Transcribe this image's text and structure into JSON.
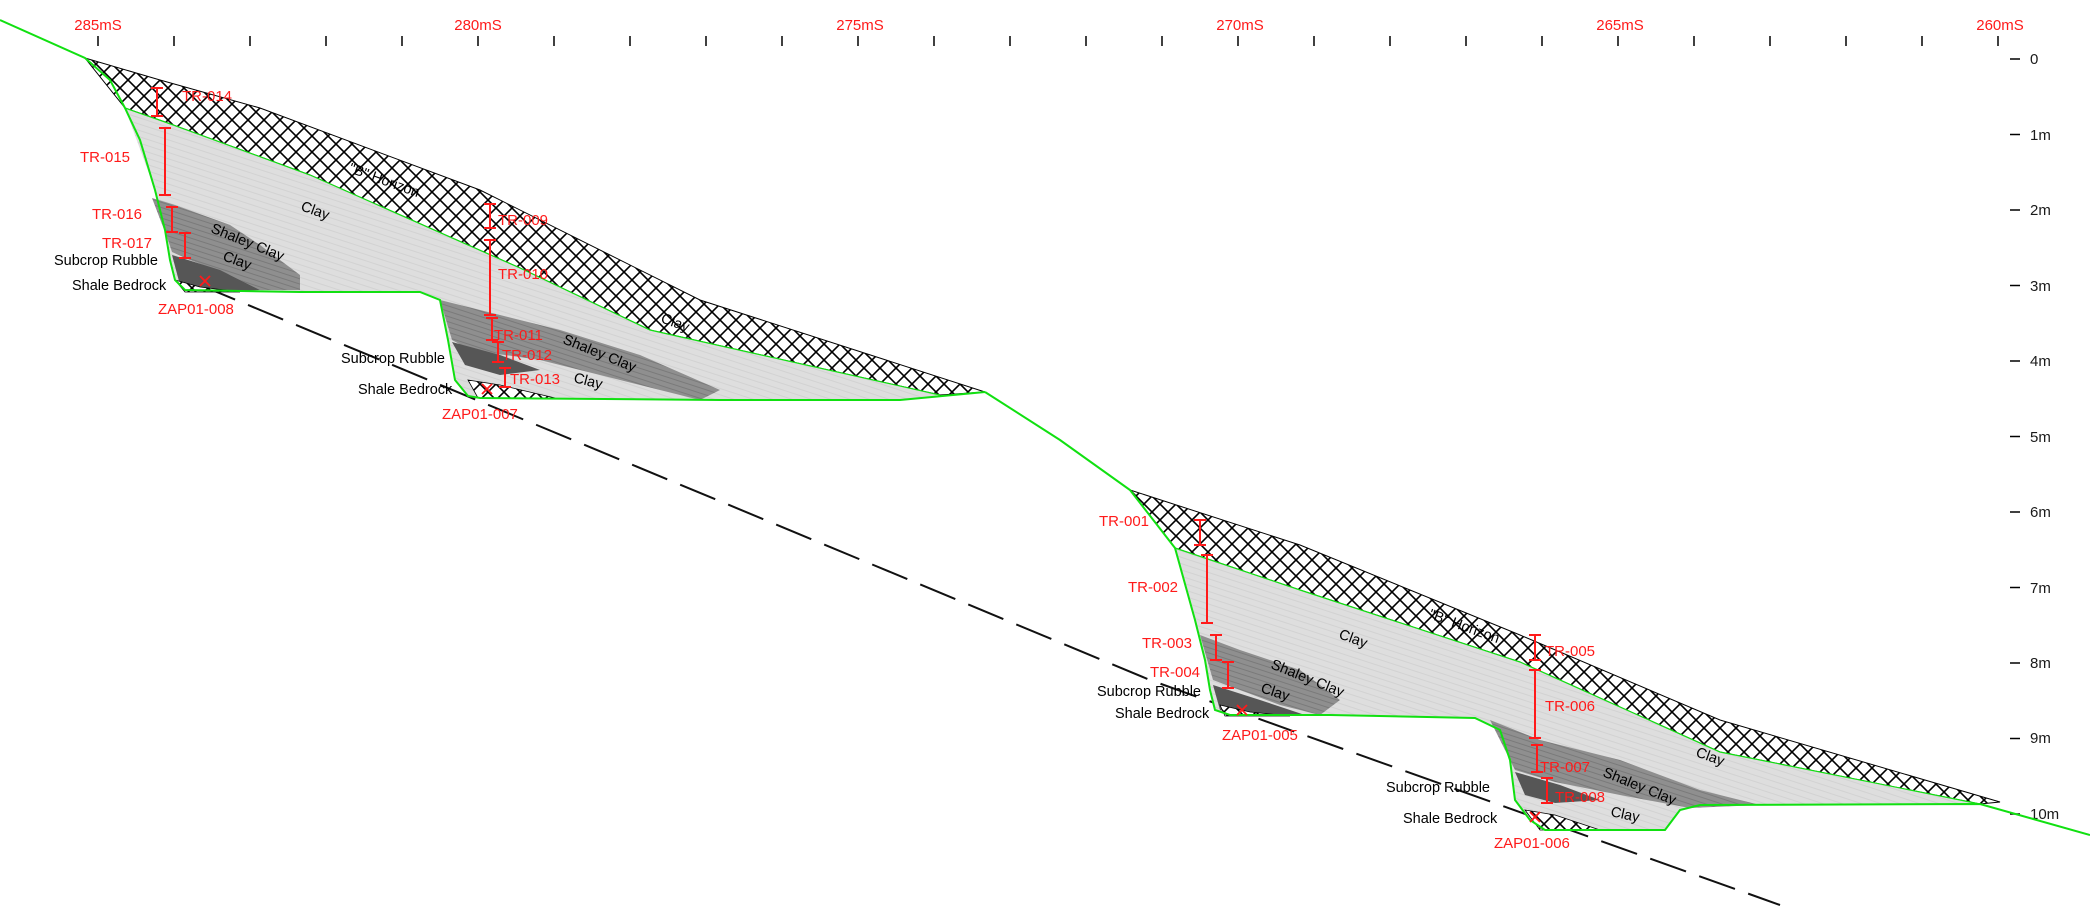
{
  "axis": {
    "easting_labels": [
      "285mS",
      "280mS",
      "275mS",
      "270mS",
      "265mS",
      "260mS"
    ],
    "depth_labels": [
      "0",
      "1m",
      "2m",
      "3m",
      "4m",
      "5m",
      "6m",
      "7m",
      "8m",
      "9m",
      "10m"
    ]
  },
  "units": {
    "b_horizon": "\"B\" Horizon",
    "clay": "Clay",
    "shaley_clay": "Shaley Clay",
    "subcrop_rubble": "Subcrop Rubble",
    "shale_bedrock": "Shale Bedrock"
  },
  "samples": {
    "tr014": "TR-014",
    "tr015": "TR-015",
    "tr016": "TR-016",
    "tr017": "TR-017",
    "zap008": "ZAP01-008",
    "tr009": "TR-009",
    "tr010": "TR-010",
    "tr011": "TR-011",
    "tr012": "TR-012",
    "tr013": "TR-013",
    "zap007": "ZAP01-007",
    "tr001": "TR-001",
    "tr002": "TR-002",
    "tr003": "TR-003",
    "tr004": "TR-004",
    "zap005": "ZAP01-005",
    "tr005": "TR-005",
    "tr006": "TR-006",
    "tr007": "TR-007",
    "tr008": "TR-008",
    "zap006": "ZAP01-006"
  },
  "colors": {
    "ground_line": "#00e000",
    "sample_red": "#ff1a1a",
    "clay_fill": "#dcdcdc",
    "shaley_clay_fill": "#8c8c8c",
    "rubble_fill": "#555555"
  }
}
